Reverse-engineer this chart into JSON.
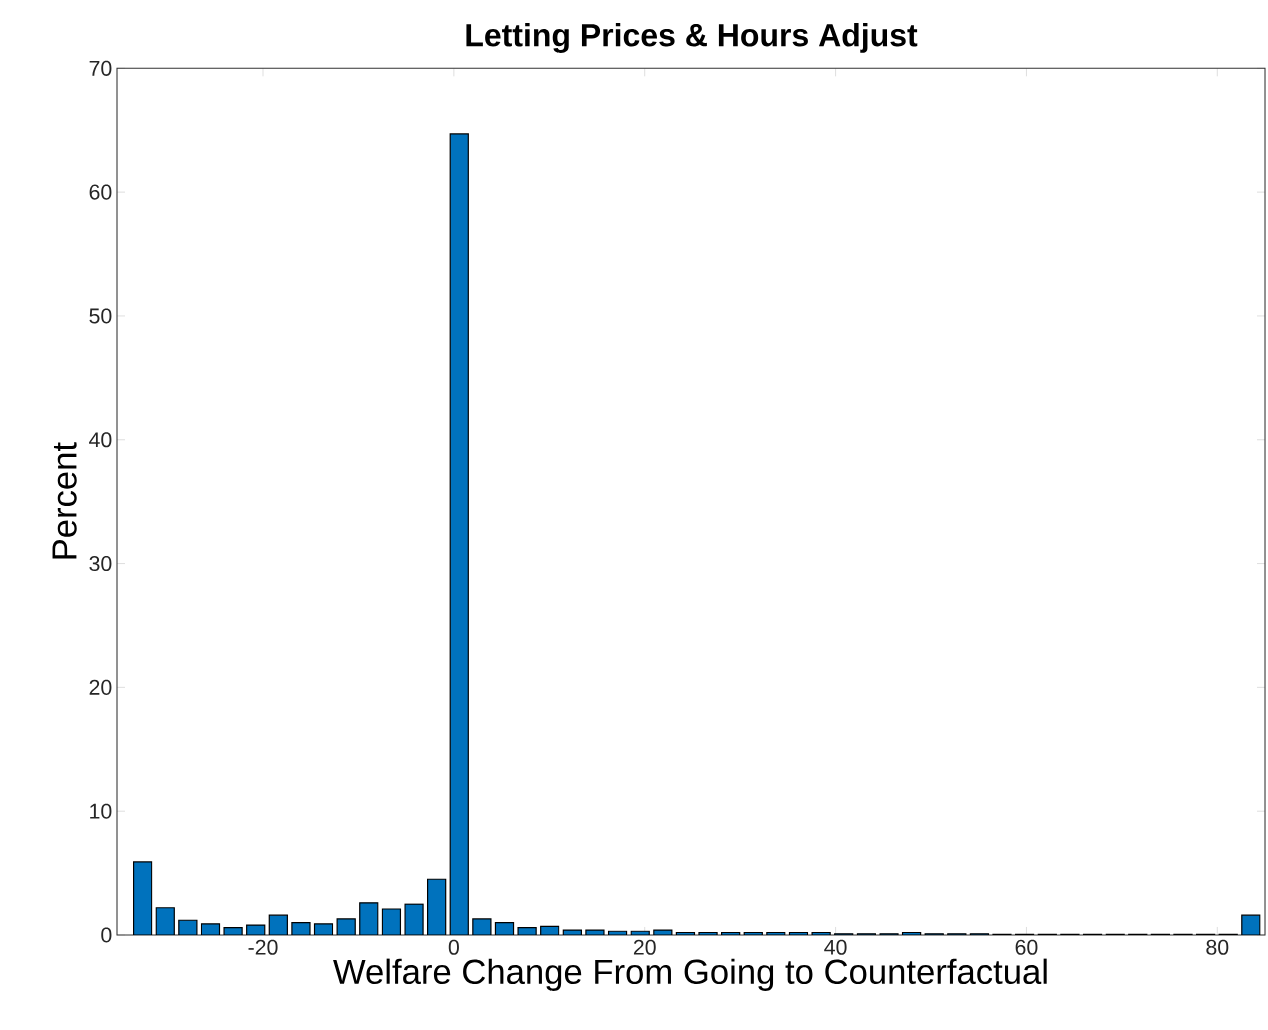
{
  "chart_data": {
    "type": "histogram",
    "title": "Letting Prices & Hours Adjust",
    "xlabel": "Welfare Change From Going to Counterfactual",
    "ylabel": "Percent",
    "color": "#0072bd",
    "bins": [
      -33.8,
      -31.43,
      -29.06,
      -26.69,
      -24.32,
      -21.95,
      -19.58,
      -17.21,
      -14.84,
      -12.47,
      -10.1,
      -7.73,
      -5.36,
      -2.99,
      -0.62,
      1.75,
      4.12,
      6.49,
      8.86,
      11.23,
      13.6,
      15.97,
      18.34,
      20.71,
      23.08,
      25.45,
      27.82,
      30.19,
      32.56,
      34.93,
      37.3,
      39.67,
      42.04,
      44.41,
      46.78,
      49.15,
      51.52,
      53.89,
      56.26,
      58.63,
      61.0,
      63.37,
      65.74,
      68.11,
      70.48,
      72.85,
      75.22,
      77.59,
      79.96,
      82.33,
      84.7
    ],
    "values": [
      5.9,
      2.2,
      1.2,
      0.9,
      0.6,
      0.8,
      1.6,
      1.0,
      0.9,
      1.3,
      2.6,
      2.1,
      2.5,
      4.5,
      64.7,
      1.3,
      1.0,
      0.6,
      0.7,
      0.4,
      0.4,
      0.3,
      0.3,
      0.4,
      0.2,
      0.2,
      0.2,
      0.2,
      0.2,
      0.2,
      0.2,
      0.1,
      0.1,
      0.1,
      0.2,
      0.1,
      0.1,
      0.1,
      0.05,
      0.05,
      0.05,
      0.05,
      0.05,
      0.05,
      0.05,
      0.05,
      0.05,
      0.05,
      0.05,
      1.6
    ],
    "xlim": [
      -35.3,
      85
    ],
    "ylim": [
      0,
      70
    ],
    "xticks": [
      -20,
      0,
      20,
      40,
      60,
      80
    ],
    "yticks": [
      0,
      10,
      20,
      30,
      40,
      50,
      60,
      70
    ],
    "grid": false
  }
}
